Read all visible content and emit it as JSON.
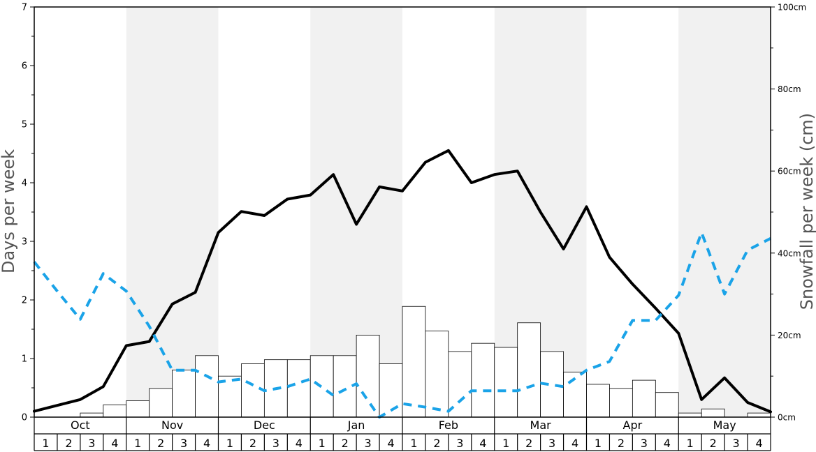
{
  "chart_data": {
    "type": "bar",
    "ylabel": "Days per week",
    "y2label": "Snowfall per week (cm)",
    "ylim": [
      0,
      7
    ],
    "y2lim": [
      0,
      100
    ],
    "yticks": [
      "0",
      "1",
      "2",
      "3",
      "4",
      "5",
      "6",
      "7"
    ],
    "y2ticks": [
      "0cm",
      "20cm",
      "40cm",
      "60cm",
      "80cm",
      "100cm"
    ],
    "months": [
      "Oct",
      "Nov",
      "Dec",
      "Jan",
      "Feb",
      "Mar",
      "Apr",
      "May"
    ],
    "weeks": [
      "1",
      "2",
      "3",
      "4"
    ],
    "shaded_months": [
      1,
      3,
      5,
      7
    ],
    "grid": false,
    "series": [
      {
        "kind": "bar",
        "axis": "right",
        "color": "#ffffff",
        "edge_color": "#000000",
        "values": [
          0,
          0,
          1,
          3,
          4,
          7,
          11.5,
          15,
          10,
          13,
          14,
          14,
          15,
          15,
          20,
          13,
          27,
          21,
          16,
          18,
          17,
          23,
          16,
          11,
          8,
          7,
          9,
          6,
          1,
          2,
          0,
          1
        ]
      },
      {
        "kind": "line",
        "axis": "left",
        "color": "#000000",
        "style": "solid",
        "values": [
          0.1,
          0.2,
          0.3,
          0.52,
          1.22,
          1.29,
          1.93,
          2.13,
          3.15,
          3.51,
          3.44,
          3.72,
          3.79,
          4.14,
          3.29,
          3.93,
          3.86,
          4.35,
          4.55,
          4.0,
          4.14,
          4.2,
          3.5,
          2.87,
          3.59,
          2.73,
          2.27,
          1.86,
          1.43,
          0.3,
          0.67,
          0.25,
          0.09
        ]
      },
      {
        "kind": "line",
        "axis": "left",
        "color": "#1aa3e8",
        "style": "dashed",
        "values": [
          2.65,
          2.15,
          1.67,
          2.45,
          2.15,
          1.55,
          0.8,
          0.8,
          0.6,
          0.65,
          0.45,
          0.52,
          0.65,
          0.37,
          0.57,
          0.0,
          0.23,
          0.17,
          0.1,
          0.45,
          0.45,
          0.45,
          0.58,
          0.52,
          0.8,
          0.95,
          1.65,
          1.65,
          2.08,
          3.15,
          2.1,
          2.85,
          3.05
        ]
      }
    ]
  }
}
